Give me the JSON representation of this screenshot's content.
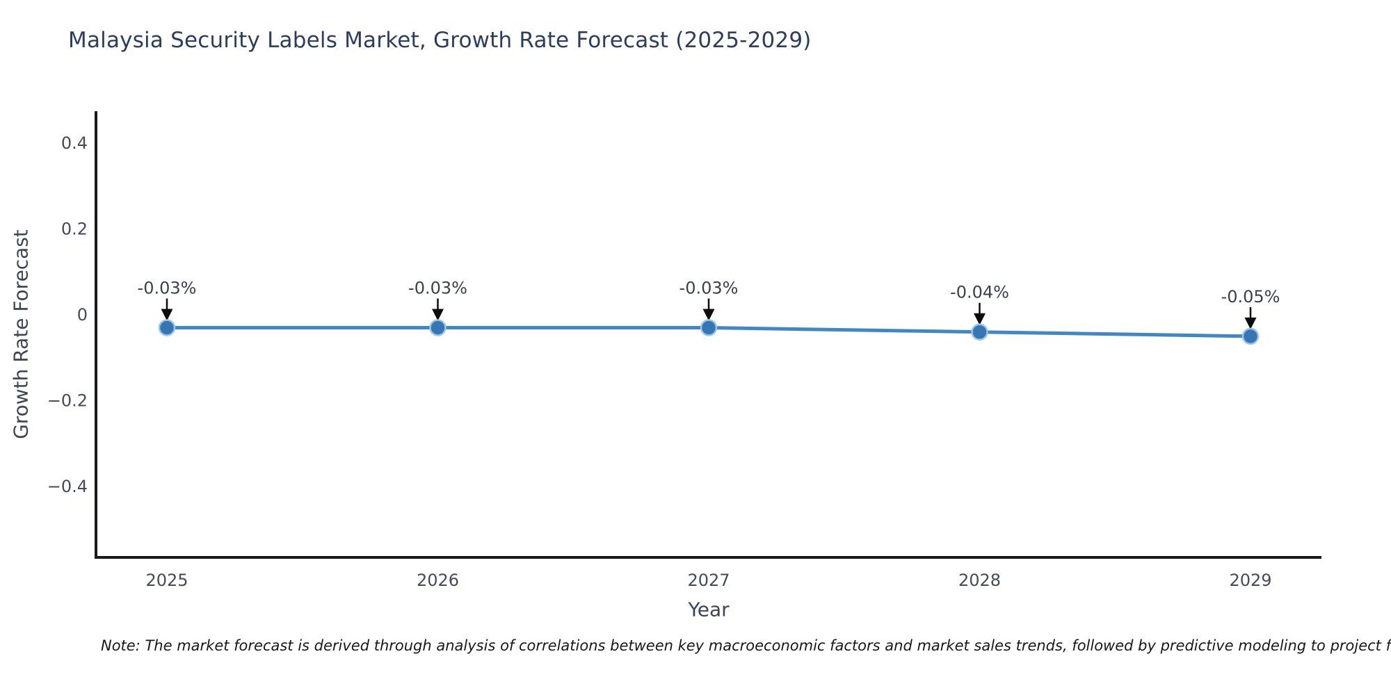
{
  "title": "Malaysia Security Labels Market, Growth Rate Forecast (2025-2029)",
  "note": "Note: The market forecast is derived through analysis of correlations between key macroeconomic factors and market sales trends, followed by predictive modeling to project future sal",
  "chart_data": {
    "type": "line",
    "title": "Malaysia Security Labels Market, Growth Rate Forecast (2025-2029)",
    "x": [
      "2025",
      "2026",
      "2027",
      "2028",
      "2029"
    ],
    "series": [
      {
        "name": "Growth Rate Forecast",
        "values": [
          -0.03,
          -0.03,
          -0.03,
          -0.04,
          -0.05
        ],
        "point_labels": [
          "-0.03%",
          "-0.03%",
          "-0.03%",
          "-0.04%",
          "-0.05%"
        ]
      }
    ],
    "xlabel": "Year",
    "ylabel": "Growth Rate Forecast",
    "yticks": [
      0.4,
      0.2,
      0,
      -0.2,
      -0.4
    ],
    "ytick_labels": [
      "0.4",
      "0.2",
      "0",
      "−0.2",
      "−0.4"
    ],
    "ylim": [
      -0.565,
      0.475
    ],
    "grid": false,
    "legend": false,
    "annotation_arrows": true,
    "colors": {
      "line": "#4187c3",
      "marker_fill": "#3576b5",
      "marker_halo": "#9cc5e6",
      "arrow": "#0c0c0c",
      "spine": "#17191c",
      "title_text": "#2c3e5d",
      "tick_text": "#434a59",
      "annotation_text": "#3b404d",
      "note_text": "#16181c",
      "background": "#ffffff"
    }
  }
}
